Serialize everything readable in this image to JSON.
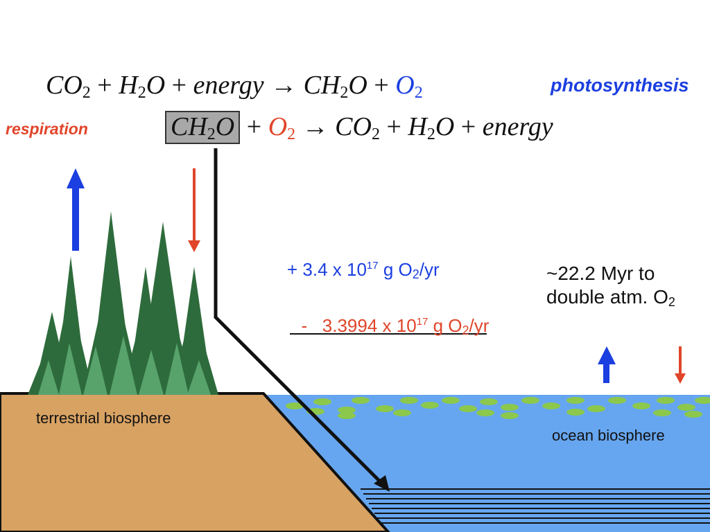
{
  "equations": {
    "photosynthesis": {
      "label": "photosynthesis",
      "lhs_co2": "CO",
      "plus1": "+",
      "h2o_h": "H",
      "h2o_o": "O",
      "plus2": "+",
      "energy": "energy",
      "arrow": "→",
      "ch2o_c": "CH",
      "ch2o_o": "O",
      "plus3": "+",
      "o2": "O",
      "sub_2": "2"
    },
    "respiration": {
      "label": "respiration",
      "ch2o_c": "CH",
      "ch2o_o": "O",
      "plus1": "+",
      "o2": "O",
      "arrow": "→",
      "co2": "CO",
      "plus2": "+",
      "h2o_h": "H",
      "h2o_o": "O",
      "plus3": "+",
      "energy": "energy",
      "sub_2": "2"
    }
  },
  "fluxes": {
    "production_prefix": "+ 3.4 x 10",
    "production_exp": "17",
    "production_unit": " g O",
    "production_sub": "2",
    "production_suffix": "/yr",
    "consumption_prefix": "-   3.3994 x 10",
    "consumption_exp": "17",
    "consumption_unit": " g O",
    "consumption_sub": "2",
    "consumption_suffix": "/yr"
  },
  "doubling": {
    "line1": "~22.2 Myr to",
    "line2_prefix": "double atm. O",
    "line2_sub": "2"
  },
  "labels": {
    "terrestrial": "terrestrial biosphere",
    "ocean": "ocean biosphere"
  },
  "colors": {
    "photosynthesis": "#1b3fe0",
    "respiration": "#e0452a",
    "land": "#d8a263",
    "ocean": "#66a6f0",
    "tree_dark": "#2e6b3c",
    "tree_light": "#58a36c",
    "plankton": "#8cc84b",
    "box": "#a8a8a8"
  },
  "icons": {
    "up_arrow": "up-arrow-icon",
    "down_arrow": "down-arrow-icon",
    "tree": "conifer-tree-icon"
  }
}
